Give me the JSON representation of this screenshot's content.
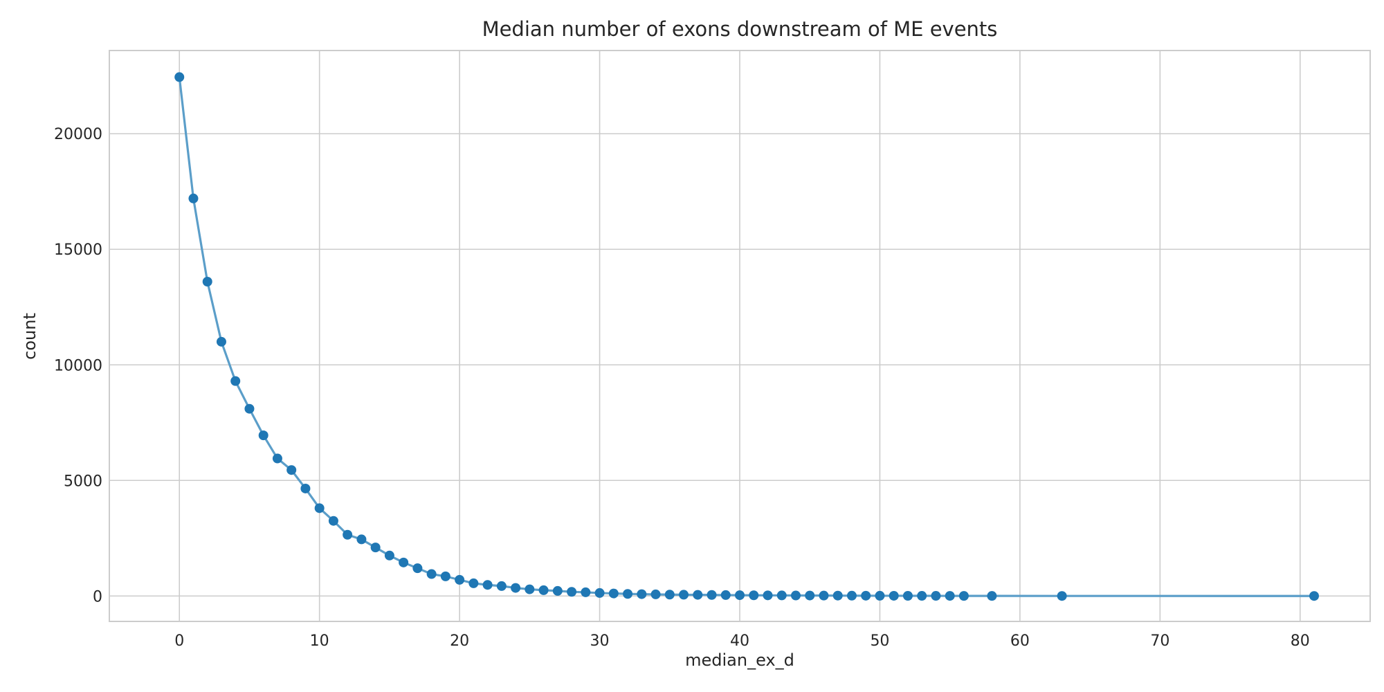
{
  "chart_data": {
    "type": "line",
    "title": "Median number of exons downstream of ME events",
    "xlabel": "median_ex_d",
    "ylabel": "count",
    "xlim": [
      -5,
      85
    ],
    "ylim": [
      -1100,
      23600
    ],
    "x_ticks": [
      0,
      10,
      20,
      30,
      40,
      50,
      60,
      70,
      80
    ],
    "y_ticks": [
      0,
      5000,
      10000,
      15000,
      20000
    ],
    "grid": true,
    "legend": "none",
    "line_color": "#5b9ec9",
    "marker_color": "#1f77b4",
    "series": [
      {
        "x": [
          0,
          1,
          2,
          3,
          4,
          5,
          6,
          7,
          8,
          9,
          10,
          11,
          12,
          13,
          14,
          15,
          16,
          17,
          18,
          19,
          20,
          21,
          22,
          23,
          24,
          25,
          26,
          27,
          28,
          29,
          30,
          31,
          32,
          33,
          34,
          35,
          36,
          37,
          38,
          39,
          40,
          41,
          42,
          43,
          44,
          45,
          46,
          47,
          48,
          49,
          50,
          51,
          52,
          53,
          54,
          55,
          56,
          58,
          63,
          81
        ],
        "values": [
          22450,
          17200,
          13600,
          11000,
          9300,
          8100,
          6950,
          5950,
          5450,
          4650,
          3800,
          3250,
          2650,
          2450,
          2100,
          1750,
          1450,
          1200,
          950,
          850,
          700,
          550,
          480,
          430,
          350,
          290,
          250,
          220,
          180,
          160,
          130,
          110,
          90,
          80,
          70,
          60,
          55,
          50,
          45,
          40,
          35,
          30,
          28,
          25,
          22,
          20,
          18,
          16,
          14,
          12,
          10,
          9,
          8,
          7,
          6,
          5,
          4,
          3,
          2,
          1
        ]
      }
    ]
  }
}
